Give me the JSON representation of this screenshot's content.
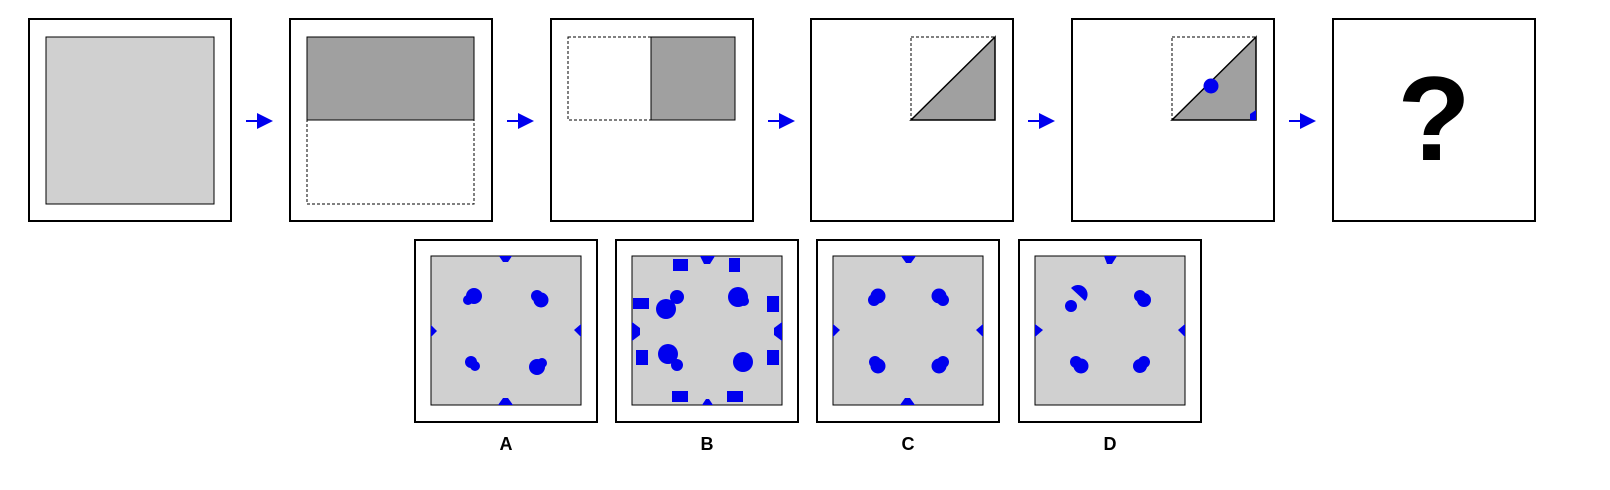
{
  "sequence": {
    "steps": [
      "full-square",
      "fold-top-down",
      "fold-left-right",
      "fold-diagonal",
      "punch-holes"
    ],
    "question": "?"
  },
  "options": [
    {
      "label": "A"
    },
    {
      "label": "B"
    },
    {
      "label": "C"
    },
    {
      "label": "D"
    }
  ],
  "colors": {
    "paper": "#d0d0d0",
    "folded": "#a0a0a0",
    "hole": "#0000ee",
    "arrow": "#0000ee",
    "border": "#000000"
  }
}
